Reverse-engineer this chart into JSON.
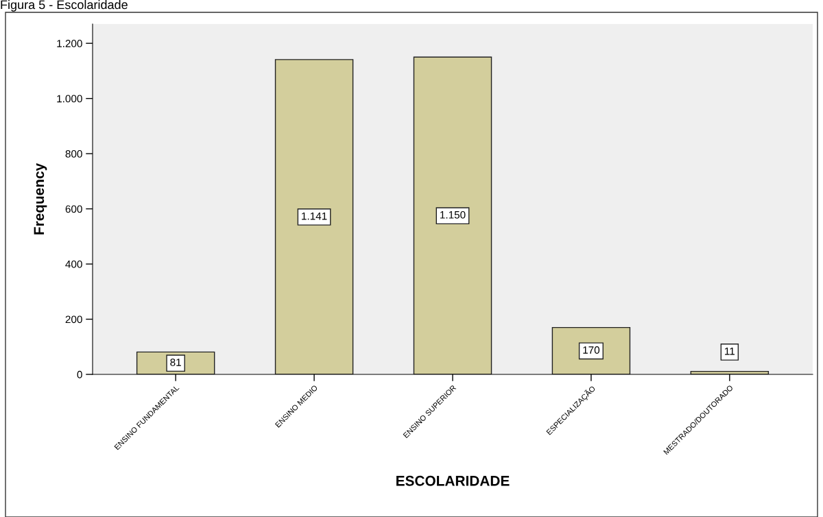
{
  "chart_data": {
    "type": "bar",
    "title": "Figura 5 - Escolaridade",
    "xlabel": "ESCOLARIDADE",
    "ylabel": "Frequency",
    "categories": [
      "ENSINO FUNDAMENTAL",
      "ENSINO MEDIO",
      "ENSINO SUPERIOR",
      "ESPECIALIZAÇÃO",
      "MESTRADO/DOUTORADO"
    ],
    "values": [
      81,
      1141,
      1150,
      170,
      11
    ],
    "value_labels": [
      "81",
      "1.141",
      "1.150",
      "170",
      "11"
    ],
    "color": "#d3ce9c",
    "ylim": [
      0,
      1270
    ],
    "yticks": [
      0,
      200,
      400,
      600,
      800,
      {
        "value": 1000,
        "label": "1.000"
      },
      {
        "value": 1200,
        "label": "1.200"
      }
    ],
    "grid": false,
    "legend": false
  }
}
